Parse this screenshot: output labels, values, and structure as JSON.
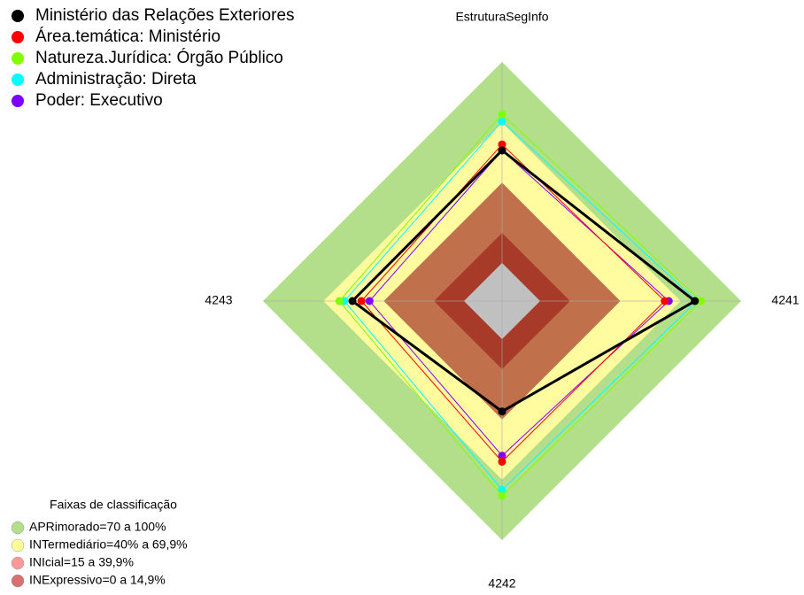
{
  "chart_data": {
    "type": "radar",
    "categories": [
      "EstruturaSegInfo",
      "4241",
      "4242",
      "4243"
    ],
    "ylim": [
      0,
      100
    ],
    "series": [
      {
        "name": "Ministério das Relações Exteriores",
        "color": "#000000",
        "values": [
          56,
          77,
          36,
          55.5
        ]
      },
      {
        "name": "Área.temática: Ministério",
        "color": "#ff0000",
        "values": [
          59,
          62,
          61,
          51
        ]
      },
      {
        "name": "Natureza.Jurídica: Órgão Público",
        "color": "#80ff00",
        "values": [
          74,
          80,
          78,
          62
        ]
      },
      {
        "name": "Administração: Direta",
        "color": "#00ffff",
        "values": [
          70.5,
          78,
          75,
          59.5
        ]
      },
      {
        "name": "Poder: Executivo",
        "color": "#8000ff",
        "values": [
          56,
          64,
          58,
          47
        ]
      }
    ],
    "legend_title": "Faixas de classificação",
    "bands": [
      {
        "label": "APRimorado=70 a 100%",
        "color": "#b4df8a",
        "lo": 70,
        "hi": 100
      },
      {
        "label": "INTermediário=40% a 69,9%",
        "color": "#fffb9e",
        "lo": 40,
        "hi": 69.9
      },
      {
        "label": "INIcial=15 a 39,9%",
        "color": "#c0704a",
        "lo": 15,
        "hi": 39.9
      },
      {
        "label": "INExpressivo=0 a 14,9%",
        "color": "#a83a2a",
        "lo": 0,
        "hi": 14.9
      }
    ],
    "legend_swatches": [
      "#b4df8a",
      "#ffff99",
      "#ff9999",
      "#d97070"
    ]
  }
}
